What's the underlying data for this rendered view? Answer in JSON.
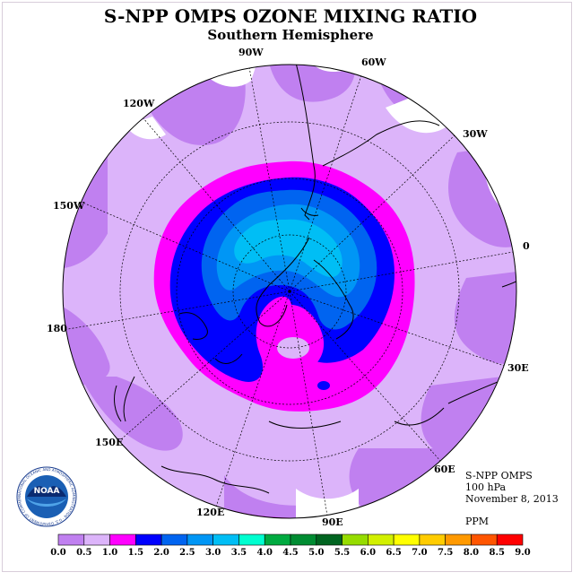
{
  "title": "S-NPP OMPS OZONE MIXING RATIO",
  "subtitle": "Southern Hemisphere",
  "longitude_labels": [
    "90W",
    "60W",
    "120W",
    "30W",
    "150W",
    "0",
    "180",
    "30E",
    "150E",
    "60E",
    "120E",
    "90E"
  ],
  "info": {
    "instrument": "S-NPP OMPS",
    "level": "100 hPa",
    "date": "November 8, 2013",
    "units": "PPM"
  },
  "logo": {
    "text": "NOAA",
    "ring_text": "NATIONAL OCEANIC AND ATMOSPHERIC ADMINISTRATION · U.S. DEPARTMENT OF COMMERCE"
  },
  "colorbar": {
    "ticks": [
      "0.0",
      "0.5",
      "1.0",
      "1.5",
      "2.0",
      "2.5",
      "3.0",
      "3.5",
      "4.0",
      "4.5",
      "5.0",
      "5.5",
      "6.0",
      "6.5",
      "7.0",
      "7.5",
      "8.0",
      "8.5",
      "9.0"
    ],
    "colors": [
      "#c080f0",
      "#dcb4fa",
      "#ff00ff",
      "#0000ff",
      "#0064f0",
      "#0096f5",
      "#00bef5",
      "#00ffd0",
      "#00aa40",
      "#008c32",
      "#006420",
      "#96dc00",
      "#d2f000",
      "#ffff00",
      "#ffcc00",
      "#ff9900",
      "#ff5500",
      "#ff0000",
      "#8b5a3c"
    ]
  },
  "colors": {
    "background": "#ffffff",
    "ocean_gap": "#ffffff",
    "level_0_0": "#c080f0",
    "level_0_5": "#dcb4fa",
    "level_1_0": "#ff00ff",
    "level_1_5": "#0000ff",
    "level_2_0": "#0064f0",
    "level_2_5": "#0096f5",
    "level_3_0": "#00bef5"
  }
}
